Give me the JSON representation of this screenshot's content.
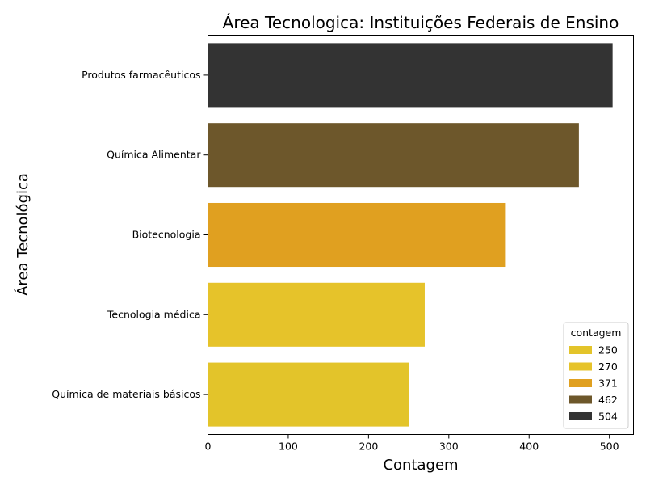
{
  "chart_data": {
    "type": "bar",
    "orientation": "horizontal",
    "title": "Área Tecnologica: Instituições Federais de Ensino",
    "xlabel": "Contagem",
    "ylabel": "Área Tecnológica",
    "xlim": [
      0,
      530
    ],
    "xticks": [
      0,
      100,
      200,
      300,
      400,
      500
    ],
    "grid": false,
    "categories": [
      "Produtos farmacêuticos",
      "Química Alimentar",
      "Biotecnologia",
      "Tecnologia médica",
      "Química de materiais básicos"
    ],
    "values": [
      504,
      462,
      371,
      270,
      250
    ],
    "colors": [
      "#333333",
      "#6d572b",
      "#e0a020",
      "#e6c32a",
      "#e3c42a"
    ],
    "legend": {
      "title": "contagem",
      "placement": "lower-right",
      "entries": [
        {
          "label": "250",
          "color": "#e3c42a"
        },
        {
          "label": "270",
          "color": "#e6c32a"
        },
        {
          "label": "371",
          "color": "#e0a020"
        },
        {
          "label": "462",
          "color": "#6d572b"
        },
        {
          "label": "504",
          "color": "#333333"
        }
      ]
    }
  }
}
